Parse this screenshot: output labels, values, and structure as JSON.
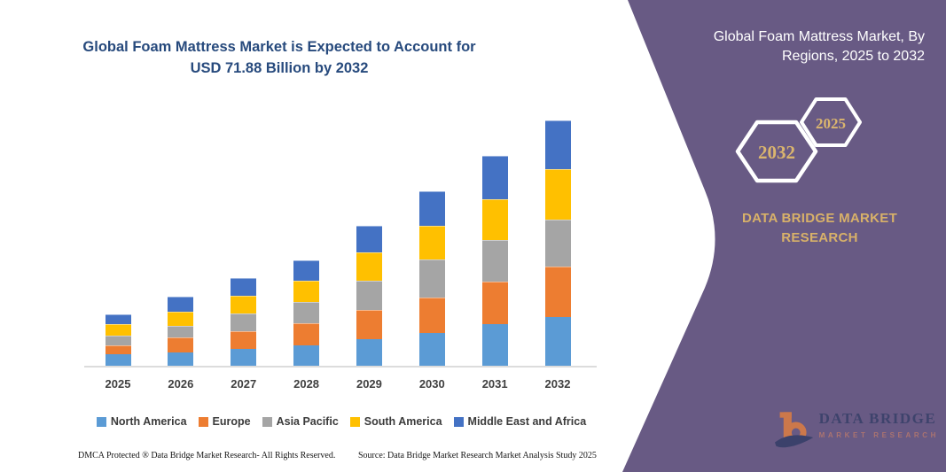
{
  "page": {
    "left_title": "Global Foam Mattress Market is Expected to Account for USD 71.88 Billion by 2032",
    "footer_left": "DMCA Protected ® Data Bridge Market Research-  All Rights Reserved.",
    "footer_right": "Source: Data Bridge Market Research  Market Analysis Study 2025"
  },
  "panel": {
    "title": "Global Foam Mattress Market, By Regions, 2025 to 2032",
    "brand": "DATA BRIDGE MARKET RESEARCH",
    "background_color": "#685a84",
    "accent_text_color": "#dab56e",
    "hexagons": [
      {
        "label": "2032"
      },
      {
        "label": "2025"
      }
    ]
  },
  "logo": {
    "line1": "DATA BRIDGE",
    "line2": "MARKET RESEARCH"
  },
  "chart_data": {
    "type": "bar",
    "stacked": true,
    "title": "Global Foam Mattress Market is Expected to Account for USD 71.88 Billion by 2032",
    "unit": "USD Billion",
    "categories": [
      "2025",
      "2026",
      "2027",
      "2028",
      "2029",
      "2030",
      "2031",
      "2032"
    ],
    "series": [
      {
        "name": "North America",
        "color": "#5B9BD5",
        "values": [
          3.3,
          3.9,
          5.0,
          6.1,
          7.8,
          9.7,
          12.1,
          14.3
        ]
      },
      {
        "name": "Europe",
        "color": "#ED7D31",
        "values": [
          2.8,
          4.3,
          5.2,
          6.3,
          8.7,
          10.4,
          12.7,
          14.7
        ]
      },
      {
        "name": "Asia Pacific",
        "color": "#A5A5A5",
        "values": [
          2.8,
          3.5,
          5.2,
          6.4,
          8.4,
          11.1,
          12.1,
          14.0
        ]
      },
      {
        "name": "South America",
        "color": "#FFC000",
        "values": [
          3.2,
          4.2,
          5.1,
          6.1,
          8.3,
          9.8,
          12.1,
          14.6
        ]
      },
      {
        "name": "Middle East and Africa",
        "color": "#4472C4",
        "values": [
          3.1,
          4.4,
          5.3,
          6.1,
          7.8,
          10.3,
          12.6,
          14.3
        ]
      }
    ],
    "totals": {
      "2025": 15.2,
      "2026": 20.3,
      "2027": 25.8,
      "2028": 31.0,
      "2029": 41.0,
      "2030": 51.3,
      "2031": 61.6,
      "2032": 71.88
    },
    "ylim": [
      0,
      75
    ],
    "grid": false,
    "y_axis_shown": false,
    "legend_position": "bottom"
  }
}
